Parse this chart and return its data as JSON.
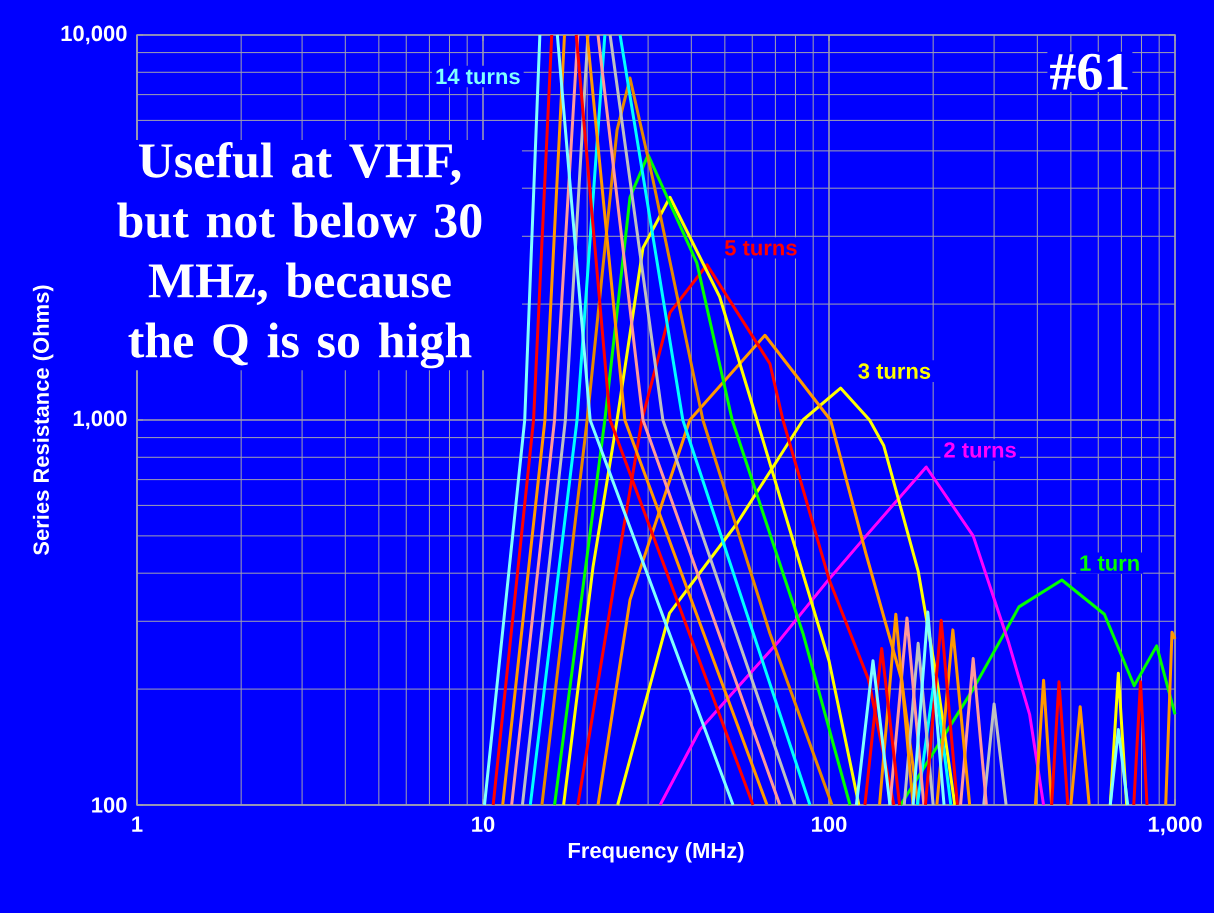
{
  "chart_data": {
    "type": "line",
    "xlabel": "Frequency  (MHz)",
    "ylabel": "Series Resistance  (Ohms)",
    "log": "xy",
    "grid": true,
    "xlim": [
      1,
      1000
    ],
    "ylim": [
      100,
      10000
    ],
    "xticks": [
      1,
      10,
      100,
      {
        "value": 1000,
        "label": "1,000"
      }
    ],
    "yticks": [
      100,
      {
        "value": 1000,
        "label": "1,000"
      },
      {
        "value": 10000,
        "label": "10,000"
      }
    ],
    "annotations": [
      "Useful at VHF, but not below 30 MHz, because the Q is so high",
      "#61"
    ],
    "series": [
      {
        "name": "1 turn",
        "color": "#00ff00",
        "x": [
          161,
          261,
          354,
          471,
          625,
          762,
          885,
          1000
        ],
        "values": [
          100,
          200,
          327,
          384,
          313,
          204,
          259,
          172
        ]
      },
      {
        "name": "2 turns",
        "color": "#ff00ff",
        "x": [
          32.5,
          42.4,
          72.0,
          100,
          128,
          191,
          261,
          331,
          380,
          417
        ],
        "values": [
          100,
          157,
          268,
          386,
          500,
          755,
          500,
          263,
          172,
          100
        ]
      },
      {
        "name": "3 turns",
        "color": "#ffff00",
        "x": [
          24.5,
          34.6,
          54.3,
          84.1,
          108,
          131,
          144,
          181,
          205,
          231
        ],
        "values": [
          100,
          315,
          540,
          1000,
          1210,
          1000,
          857,
          405,
          212,
          100
        ]
      },
      {
        "color": "#ffff00",
        "x": [
          650,
          686,
          725
        ],
        "values": [
          100,
          220,
          100
        ]
      },
      {
        "color": "#ff9900",
        "x": [
          21.5,
          26.6,
          39.6,
          65.3,
          101,
          128,
          162,
          181
        ],
        "values": [
          100,
          341,
          1000,
          1660,
          1000,
          448,
          212,
          100
        ]
      },
      {
        "name": "5 turns",
        "color": "#ff0000",
        "x": [
          18.8,
          24.4,
          28.8,
          34.7,
          44.4,
          67.5,
          73.6,
          100,
          130,
          154
        ],
        "values": [
          100,
          416,
          1000,
          1900,
          2530,
          1400,
          1000,
          386,
          212,
          100
        ]
      },
      {
        "color": "#ffff00",
        "x": [
          17.1,
          20.8,
          24.4,
          29.0,
          34.7,
          48.3,
          61.9,
          100,
          122
        ],
        "values": [
          100,
          416,
          1000,
          2800,
          3790,
          2090,
          1000,
          237,
          100
        ]
      },
      {
        "color": "#00ff00",
        "x": [
          16.1,
          22.5,
          26.6,
          30.0,
          41.5,
          52.5,
          84.1,
          115
        ],
        "values": [
          100,
          1000,
          3790,
          4880,
          2560,
          1000,
          279,
          100
        ]
      },
      {
        "color": "#e68a00",
        "x": [
          14.8,
          20.0,
          24.4,
          26.6,
          31.0,
          43.2,
          67.5,
          102
        ],
        "values": [
          100,
          1000,
          5660,
          7730,
          4200,
          1000,
          279,
          100
        ]
      },
      {
        "color": "#00ffff",
        "x": [
          13.7,
          18.7,
          22.5
        ],
        "values": [
          100,
          1000,
          10000
        ]
      },
      {
        "color": "#00ffff",
        "x": [
          24.9,
          37.8,
          88.1
        ],
        "values": [
          10000,
          1000,
          100
        ]
      },
      {
        "color": "#00ffff",
        "x": [
          180,
          202,
          225
        ],
        "values": [
          100,
          215,
          100
        ]
      },
      {
        "color": "#c0c0c0",
        "x": [
          13.0,
          17.3,
          20.1
        ],
        "values": [
          100,
          1000,
          10000
        ]
      },
      {
        "color": "#c0c0c0",
        "x": [
          23.3,
          33.1,
          79.7
        ],
        "values": [
          10000,
          1000,
          100
        ]
      },
      {
        "color": "#c0c0c0",
        "x": [
          165,
          181,
          200
        ],
        "values": [
          100,
          263,
          100
        ]
      },
      {
        "color": "#c0c0c0",
        "x": [
          280,
          300,
          325
        ],
        "values": [
          100,
          183,
          100
        ]
      },
      {
        "color": "#ff9999",
        "x": [
          12.1,
          16.1,
          18.8
        ],
        "values": [
          100,
          1000,
          10000
        ]
      },
      {
        "color": "#ff9999",
        "x": [
          21.5,
          29.0,
          72.1
        ],
        "values": [
          10000,
          1000,
          100
        ]
      },
      {
        "color": "#ff9999",
        "x": [
          150,
          168,
          188
        ],
        "values": [
          100,
          306,
          100
        ]
      },
      {
        "color": "#ff9999",
        "x": [
          240,
          261,
          285
        ],
        "values": [
          100,
          240,
          100
        ]
      },
      {
        "color": "#ff9900",
        "x": [
          11.4,
          15.1,
          17.2
        ],
        "values": [
          100,
          1000,
          10000
        ]
      },
      {
        "color": "#ff9900",
        "x": [
          20.0,
          25.7,
          66.2
        ],
        "values": [
          10000,
          1000,
          100
        ]
      },
      {
        "color": "#ff9900",
        "x": [
          140,
          156,
          175
        ],
        "values": [
          100,
          313,
          100
        ]
      },
      {
        "color": "#ff9900",
        "x": [
          205,
          228,
          255
        ],
        "values": [
          100,
          285,
          100
        ]
      },
      {
        "color": "#ff9900",
        "x": [
          395,
          417,
          440
        ],
        "values": [
          100,
          211,
          100
        ]
      },
      {
        "color": "#ff9900",
        "x": [
          500,
          532,
          565
        ],
        "values": [
          100,
          180,
          100
        ]
      },
      {
        "color": "#ff9900",
        "x": [
          940,
          980,
          1000
        ],
        "values": [
          100,
          281,
          270
        ]
      },
      {
        "color": "#ff0000",
        "x": [
          10.7,
          14.0,
          15.8
        ],
        "values": [
          100,
          1000,
          10000
        ]
      },
      {
        "color": "#ff0000",
        "x": [
          18.6,
          23.3,
          60.3
        ],
        "values": [
          10000,
          1000,
          100
        ]
      },
      {
        "color": "#ff0000",
        "x": [
          127,
          142,
          160
        ],
        "values": [
          100,
          255,
          100
        ]
      },
      {
        "color": "#ff0000",
        "x": [
          190,
          211,
          235
        ],
        "values": [
          100,
          302,
          100
        ]
      },
      {
        "color": "#ff0000",
        "x": [
          440,
          462,
          490
        ],
        "values": [
          100,
          209,
          100
        ]
      },
      {
        "color": "#ff0000",
        "x": [
          760,
          795,
          830
        ],
        "values": [
          100,
          209,
          100
        ]
      },
      {
        "name": "14 turns",
        "color": "#80ffff",
        "x": [
          10.1,
          13.2,
          14.6
        ],
        "values": [
          100,
          1000,
          10000
        ]
      },
      {
        "color": "#80ffff",
        "x": [
          16.4,
          20.4,
          52.8
        ],
        "values": [
          10000,
          1000,
          100
        ]
      },
      {
        "color": "#80ffff",
        "x": [
          120,
          134,
          150
        ],
        "values": [
          100,
          237,
          100
        ]
      },
      {
        "color": "#80ffff",
        "x": [
          175,
          193,
          215
        ],
        "values": [
          100,
          317,
          100
        ]
      },
      {
        "color": "#80ffff",
        "x": [
          650,
          686,
          730
        ],
        "values": [
          100,
          157,
          100
        ]
      }
    ]
  }
}
